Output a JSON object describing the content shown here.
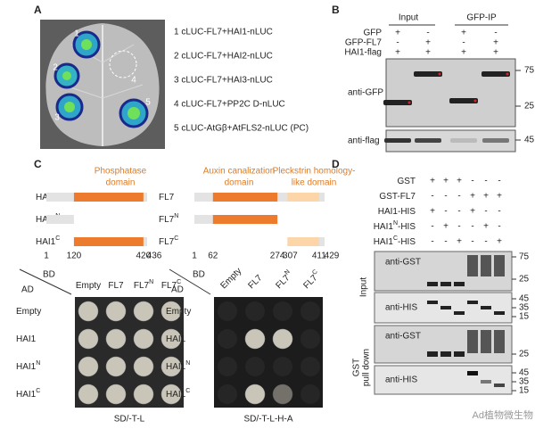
{
  "panel_a": {
    "label": "A",
    "leaf_numbers": [
      "1",
      "2",
      "3",
      "4",
      "5"
    ],
    "constructs": [
      "1 cLUC-FL7+HAI1-nLUC",
      "2 cLUC-FL7+HAI2-nLUC",
      "3 cLUC-FL7+HAI3-nLUC",
      "4 cLUC-FL7+PP2C D-nLUC",
      "5 cLUC-AtGβ+AtFLS2-nLUC (PC)"
    ]
  },
  "panel_b": {
    "label": "B",
    "column_groups": [
      "Input",
      "GFP-IP"
    ],
    "rows": [
      {
        "name": "GFP",
        "signs": [
          "+",
          "-",
          "+",
          "-"
        ]
      },
      {
        "name": "GFP-FL7",
        "signs": [
          "-",
          "+",
          "-",
          "+"
        ]
      },
      {
        "name": "HAI1-flag",
        "signs": [
          "+",
          "+",
          "+",
          "+"
        ]
      }
    ],
    "blots": [
      {
        "antibody": "anti-GFP",
        "markers": [
          75,
          25
        ]
      },
      {
        "antibody": "anti-flag",
        "markers": [
          45
        ]
      }
    ]
  },
  "panel_c": {
    "label": "C",
    "domains": {
      "phosphatase": [
        "Phosphatase",
        "domain"
      ],
      "auxin": [
        "Auxin canalization",
        "domain"
      ],
      "pleckstrin": [
        "Pleckstrin homology-",
        "like domain"
      ]
    },
    "hai1_rows": [
      {
        "name": "HAI1"
      },
      {
        "name": "HAI1",
        "sup": "N"
      },
      {
        "name": "HAI1",
        "sup": "C"
      }
    ],
    "fl7_rows": [
      {
        "name": "FL7"
      },
      {
        "name": "FL7",
        "sup": "N"
      },
      {
        "name": "FL7",
        "sup": "C"
      }
    ],
    "hai1_positions": [
      1,
      120,
      420,
      436
    ],
    "fl7_positions": [
      1,
      62,
      274,
      307,
      411,
      429
    ],
    "yeast": {
      "corner": [
        "AD",
        "BD"
      ],
      "columns": [
        {
          "name": "Empty"
        },
        {
          "name": "FL7"
        },
        {
          "name": "FL7",
          "sup": "N"
        },
        {
          "name": "FL7",
          "sup": "C"
        }
      ],
      "rows": [
        {
          "name": "Empty"
        },
        {
          "name": "HAI1"
        },
        {
          "name": "HAI1",
          "sup": "N"
        },
        {
          "name": "HAI1",
          "sup": "C"
        }
      ],
      "media": [
        "SD/-T-L",
        "SD/-T-L-H-A"
      ]
    }
  },
  "panel_d": {
    "label": "D",
    "rows": [
      {
        "name": "GST",
        "signs": [
          "+",
          "+",
          "+",
          "-",
          "-",
          "-"
        ]
      },
      {
        "name": "GST-FL7",
        "signs": [
          "-",
          "-",
          "-",
          "+",
          "+",
          "+"
        ]
      },
      {
        "name": "HAI1-HIS",
        "signs": [
          "+",
          "-",
          "-",
          "+",
          "-",
          "-"
        ]
      },
      {
        "name": "HAI1",
        "sup": "N",
        "suffix": "-HIS",
        "signs": [
          "-",
          "+",
          "-",
          "-",
          "+",
          "-"
        ]
      },
      {
        "name": "HAI1",
        "sup": "C",
        "suffix": "-HIS",
        "signs": [
          "-",
          "-",
          "+",
          "-",
          "-",
          "+"
        ]
      }
    ],
    "blots": [
      {
        "antibody": "anti-GST",
        "markers": [
          75,
          25
        ]
      },
      {
        "antibody": "anti-HIS",
        "markers": [
          45,
          35,
          15
        ]
      },
      {
        "antibody": "anti-GST",
        "markers": [
          25
        ]
      },
      {
        "antibody": "anti-HIS",
        "markers": [
          45,
          35,
          15
        ]
      }
    ],
    "side_labels": {
      "input": "Input",
      "pull_down": [
        "GST",
        "pull down"
      ]
    }
  },
  "watermark": "Ad植物微生物"
}
